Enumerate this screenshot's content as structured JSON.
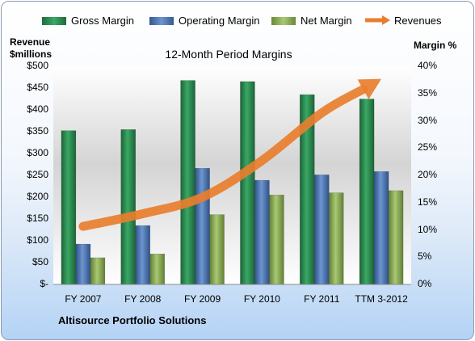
{
  "chart_data": {
    "type": "bar",
    "title": "12-Month Period Margins",
    "categories": [
      "FY 2007",
      "FY 2008",
      "FY 2009",
      "FY 2010",
      "FY 2011",
      "TTM 3-2012"
    ],
    "series": [
      {
        "name": "Gross Margin",
        "axis": "right",
        "unit": "%",
        "values": [
          28.2,
          28.4,
          37.4,
          37.2,
          34.8,
          34.0
        ],
        "color": "#2e8b57"
      },
      {
        "name": "Operating Margin",
        "axis": "right",
        "unit": "%",
        "values": [
          7.4,
          10.8,
          21.3,
          19.1,
          20.1,
          20.7
        ],
        "color": "#4f79b7"
      },
      {
        "name": "Net Margin",
        "axis": "right",
        "unit": "%",
        "values": [
          4.9,
          5.6,
          12.8,
          16.4,
          16.8,
          17.2
        ],
        "color": "#8fb356"
      },
      {
        "name": "Revenues",
        "type": "arrow-line",
        "axis": "left",
        "values": [
          133,
          162,
          200,
          284,
          393,
          471
        ],
        "color": "#e87e2e"
      }
    ],
    "ylabel_left": "Revenue\n$millions",
    "ylabel_right": "Margin %",
    "ylim_left": [
      0,
      500
    ],
    "ylim_right": [
      0,
      40
    ],
    "yticks_left": [
      "$500",
      "$450",
      "$400",
      "$350",
      "$300",
      "$250",
      "$200",
      "$150",
      "$100",
      "$50",
      "$-"
    ],
    "yticks_right": [
      "40%",
      "35%",
      "30%",
      "25%",
      "20%",
      "15%",
      "10%",
      "5%",
      "0%"
    ],
    "legend_position": "top",
    "grid": false
  },
  "legend": [
    {
      "label": "Gross Margin"
    },
    {
      "label": "Operating Margin"
    },
    {
      "label": "Net Margin"
    },
    {
      "label": "Revenues"
    }
  ],
  "axis_titles": {
    "left_line1": "Revenue",
    "left_line2": "$millions",
    "right": "Margin %"
  },
  "footer": "Altisource Portfolio Solutions"
}
